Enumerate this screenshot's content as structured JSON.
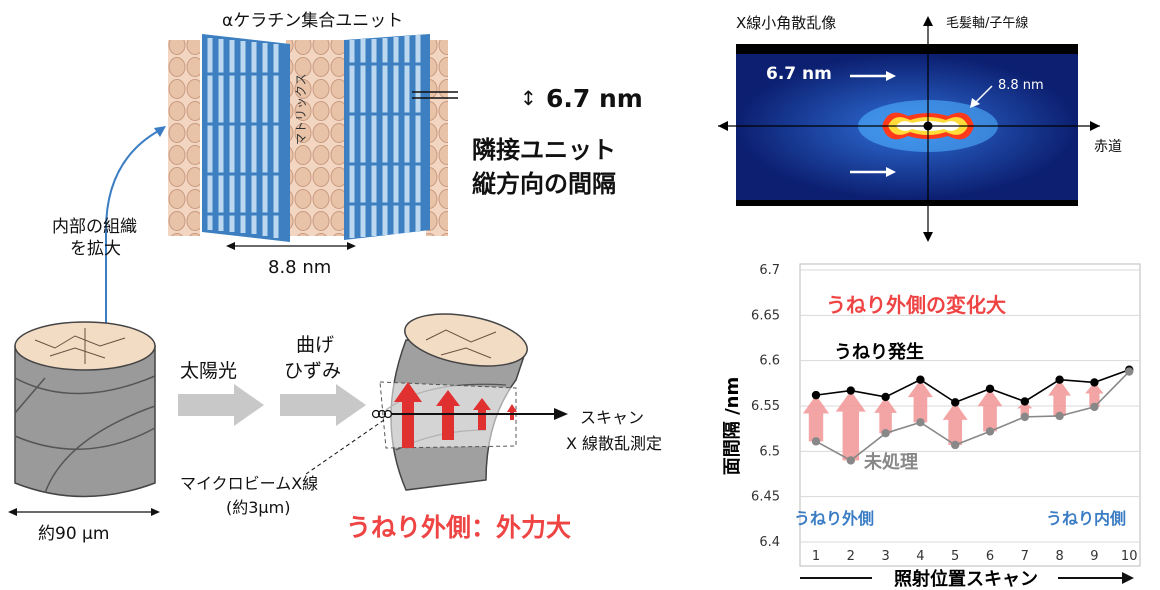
{
  "unit_title": "αケラチン集合ユニット",
  "spacing_value": "6.7 nm",
  "adjacent_label_1": "隣接ユニット",
  "adjacent_label_2": "縦方向の間隔",
  "matrix_label": "マトリックス",
  "width_label": "8.8 nm",
  "zoom_label_1": "内部の組織",
  "zoom_label_2": "を拡大",
  "fiber_size": "約90 μm",
  "sunlight": "太陽光",
  "bend_1": "曲げ",
  "bend_2": "ひずみ",
  "scan_1": "スキャン",
  "scan_2": "X 線散乱測定",
  "beam_1": "マイクロビームX線",
  "beam_2": "(約3μm)",
  "outer_force": "うねり外側：外力大",
  "saxs": {
    "title": "X線小角散乱像",
    "axis_top": "毛髪軸/子午線",
    "axis_right": "赤道",
    "peak_label": "6.7 nm",
    "peak_label_2": "8.8 nm"
  },
  "colors": {
    "accent_red": "#ef4444",
    "arrow_red": "#e03030",
    "fiber_blue": "#3d7fc0",
    "matrix_tan": "#e9c3a8",
    "label_blue": "#3b7dc4",
    "pink_arrow": "#f29a9a"
  },
  "chart_data": {
    "type": "line",
    "x": [
      1,
      2,
      3,
      4,
      5,
      6,
      7,
      8,
      9,
      10
    ],
    "series": [
      {
        "name": "うねり発生",
        "values": [
          6.562,
          6.567,
          6.56,
          6.579,
          6.554,
          6.569,
          6.555,
          6.579,
          6.576,
          6.59
        ],
        "color": "#000000"
      },
      {
        "name": "未処理",
        "values": [
          6.511,
          6.49,
          6.52,
          6.532,
          6.507,
          6.522,
          6.538,
          6.539,
          6.549,
          6.588
        ],
        "color": "#888888"
      }
    ],
    "ylabel": "面間隔 /nm",
    "xlabel": "照射位置スキャン",
    "ylim": [
      6.4,
      6.7
    ],
    "yticks": [
      "6.7",
      "6.65",
      "6.6",
      "6.55",
      "6.5",
      "6.45",
      "6.4"
    ],
    "xticks": [
      "1",
      "2",
      "3",
      "4",
      "5",
      "6",
      "7",
      "8",
      "9",
      "10"
    ],
    "annotation_title": "うねり外側の変化大",
    "label_left": "うねり外側",
    "label_right": "うねり内側",
    "grid": true
  }
}
